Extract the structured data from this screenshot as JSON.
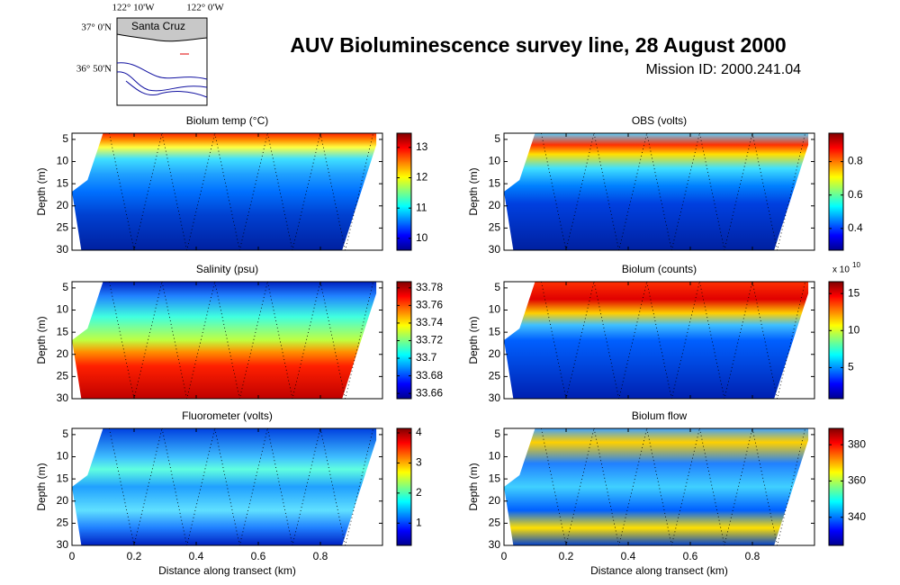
{
  "title": "AUV Bioluminescence survey line, 28 August 2000",
  "subtitle": "Mission ID: 2000.241.04",
  "map": {
    "lon_labels": [
      "122° 10'W",
      "122° 0'W"
    ],
    "lat_labels": [
      "37° 0'N",
      "36° 50'N"
    ],
    "place": "Santa Cruz"
  },
  "chart_data": [
    {
      "type": "heatmap",
      "title": "Biolum temp (°C)",
      "ylabel": "Depth (m)",
      "xlim": [
        0,
        1.0
      ],
      "xticks": [
        0,
        0.2,
        0.4,
        0.6,
        0.8
      ],
      "ylim": [
        30,
        3.6
      ],
      "yticks": [
        5,
        10,
        15,
        20,
        25,
        30
      ],
      "clim": [
        9.61,
        13.47
      ],
      "cticks": [
        10,
        11,
        12,
        13
      ]
    },
    {
      "type": "heatmap",
      "title": "OBS (volts)",
      "ylabel": "Depth (m)",
      "xlim": [
        0,
        1.0
      ],
      "xticks": [
        0,
        0.2,
        0.4,
        0.6,
        0.8
      ],
      "ylim": [
        30,
        3.6
      ],
      "yticks": [
        5,
        10,
        15,
        20,
        25,
        30
      ],
      "clim": [
        0.27,
        0.97
      ],
      "cticks": [
        0.4,
        0.6,
        0.8
      ]
    },
    {
      "type": "heatmap",
      "title": "Salinity (psu)",
      "ylabel": "Depth (m)",
      "xlim": [
        0,
        1.0
      ],
      "xticks": [
        0,
        0.2,
        0.4,
        0.6,
        0.8
      ],
      "ylim": [
        30,
        3.6
      ],
      "yticks": [
        5,
        10,
        15,
        20,
        25,
        30
      ],
      "clim": [
        33.654,
        33.787
      ],
      "cticks": [
        33.66,
        33.68,
        33.7,
        33.72,
        33.74,
        33.76,
        33.78
      ]
    },
    {
      "type": "heatmap",
      "title": "Biolum (counts)",
      "ylabel": "Depth (m)",
      "xlim": [
        0,
        1.0
      ],
      "xticks": [
        0,
        0.2,
        0.4,
        0.6,
        0.8
      ],
      "ylim": [
        30,
        3.6
      ],
      "yticks": [
        5,
        10,
        15,
        20,
        25,
        30
      ],
      "clim": [
        0.8,
        16.6
      ],
      "cticks": [
        5,
        10,
        15
      ],
      "cbar_scale": "x 10",
      "cbar_exponent": "10"
    },
    {
      "type": "heatmap",
      "title": "Fluorometer (volts)",
      "ylabel": "Depth (m)",
      "xlabel": "Distance along transect (km)",
      "xlim": [
        0,
        1.0
      ],
      "xticks": [
        0,
        0.2,
        0.4,
        0.6,
        0.8
      ],
      "ylim": [
        30,
        3.6
      ],
      "yticks": [
        5,
        10,
        15,
        20,
        25,
        30
      ],
      "clim": [
        0.26,
        4.15
      ],
      "cticks": [
        1,
        2,
        3,
        4
      ]
    },
    {
      "type": "heatmap",
      "title": "Biolum flow",
      "ylabel": "Depth (m)",
      "xlabel": "Distance along transect (km)",
      "xlim": [
        0,
        1.0
      ],
      "xticks": [
        0,
        0.2,
        0.4,
        0.6,
        0.8
      ],
      "ylim": [
        30,
        3.6
      ],
      "yticks": [
        5,
        10,
        15,
        20,
        25,
        30
      ],
      "clim": [
        324.5,
        389
      ],
      "cticks": [
        340,
        360,
        380
      ]
    }
  ]
}
